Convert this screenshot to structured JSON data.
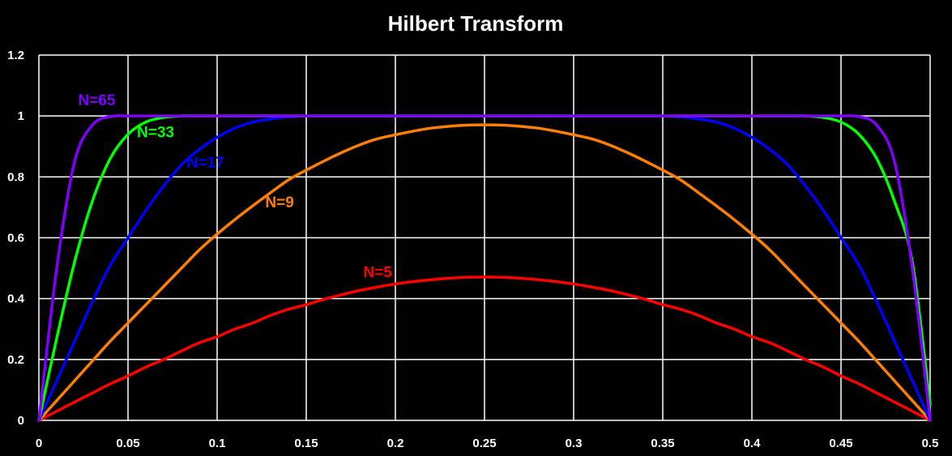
{
  "chart_data": {
    "type": "line",
    "title": "Hilbert Transform",
    "xlabel": "",
    "ylabel": "",
    "xlim": [
      0,
      0.5
    ],
    "ylim": [
      0,
      1.2
    ],
    "xticks": [
      0,
      0.05,
      0.1,
      0.15,
      0.2,
      0.25,
      0.3,
      0.35,
      0.4,
      0.45,
      0.5
    ],
    "xtick_labels": [
      "0",
      "0.05",
      "0.1",
      "0.15",
      "0.2",
      "0.25",
      "0.3",
      "0.35",
      "0.4",
      "0.45",
      "0.5"
    ],
    "yticks": [
      0,
      0.2,
      0.4,
      0.6,
      0.8,
      1,
      1.2
    ],
    "ytick_labels": [
      "0",
      "0.2",
      "0.4",
      "0.6",
      "0.8",
      "1",
      "1.2"
    ],
    "grid": true,
    "legend": "none",
    "background_color": "#000000",
    "x": [
      0,
      0.01,
      0.02,
      0.03,
      0.04,
      0.05,
      0.06,
      0.07,
      0.08,
      0.09,
      0.1,
      0.11,
      0.12,
      0.13,
      0.14,
      0.15,
      0.16,
      0.17,
      0.18,
      0.19,
      0.2,
      0.21,
      0.22,
      0.23,
      0.24,
      0.25,
      0.26,
      0.27,
      0.28,
      0.29,
      0.3,
      0.31,
      0.32,
      0.33,
      0.34,
      0.35,
      0.36,
      0.37,
      0.38,
      0.39,
      0.4,
      0.41,
      0.42,
      0.43,
      0.44,
      0.45,
      0.46,
      0.47,
      0.48,
      0.49,
      0.5
    ],
    "series": [
      {
        "name": "N=5",
        "color": "#ff0000",
        "values": [
          0,
          0.03,
          0.06,
          0.09,
          0.12,
          0.146,
          0.175,
          0.2,
          0.228,
          0.255,
          0.275,
          0.3,
          0.32,
          0.345,
          0.365,
          0.38,
          0.398,
          0.413,
          0.427,
          0.438,
          0.448,
          0.456,
          0.462,
          0.467,
          0.47,
          0.471,
          0.47,
          0.467,
          0.462,
          0.456,
          0.448,
          0.438,
          0.427,
          0.413,
          0.398,
          0.38,
          0.365,
          0.345,
          0.32,
          0.3,
          0.275,
          0.255,
          0.228,
          0.2,
          0.175,
          0.146,
          0.12,
          0.09,
          0.06,
          0.03,
          0
        ],
        "label": {
          "text": "N=5",
          "x": 0.182,
          "y": 0.47
        }
      },
      {
        "name": "N=9",
        "color": "#ff8000",
        "values": [
          0,
          0.065,
          0.13,
          0.195,
          0.26,
          0.32,
          0.38,
          0.44,
          0.5,
          0.56,
          0.612,
          0.66,
          0.705,
          0.748,
          0.79,
          0.822,
          0.852,
          0.88,
          0.905,
          0.925,
          0.938,
          0.95,
          0.96,
          0.966,
          0.97,
          0.971,
          0.97,
          0.966,
          0.96,
          0.95,
          0.938,
          0.925,
          0.905,
          0.88,
          0.852,
          0.822,
          0.79,
          0.748,
          0.705,
          0.66,
          0.612,
          0.56,
          0.5,
          0.44,
          0.38,
          0.32,
          0.26,
          0.195,
          0.13,
          0.065,
          0
        ],
        "label": {
          "text": "N=9",
          "x": 0.127,
          "y": 0.7
        }
      },
      {
        "name": "N=17",
        "color": "#0000ff",
        "values": [
          0,
          0.13,
          0.26,
          0.39,
          0.51,
          0.6,
          0.69,
          0.77,
          0.84,
          0.89,
          0.93,
          0.96,
          0.98,
          0.99,
          0.997,
          1.0,
          1.0,
          1.0,
          1.0,
          1.0,
          1.0,
          1.0,
          1.0,
          1.0,
          1.0,
          1.0,
          1.0,
          1.0,
          1.0,
          1.0,
          1.0,
          1.0,
          1.0,
          1.0,
          1.0,
          1.0,
          0.997,
          0.99,
          0.98,
          0.96,
          0.93,
          0.89,
          0.84,
          0.77,
          0.69,
          0.6,
          0.51,
          0.39,
          0.26,
          0.13,
          0
        ],
        "label": {
          "text": "N=17",
          "x": 0.083,
          "y": 0.83
        }
      },
      {
        "name": "N=33",
        "color": "#00ff00",
        "values": [
          0,
          0.27,
          0.52,
          0.72,
          0.86,
          0.94,
          0.98,
          0.995,
          1.0,
          1.0,
          1.0,
          1.0,
          1.0,
          1.0,
          1.0,
          1.0,
          1.0,
          1.0,
          1.0,
          1.0,
          1.0,
          1.0,
          1.0,
          1.0,
          1.0,
          1.0,
          1.0,
          1.0,
          1.0,
          1.0,
          1.0,
          1.0,
          1.0,
          1.0,
          1.0,
          1.0,
          1.0,
          1.0,
          1.0,
          1.0,
          1.0,
          1.0,
          1.0,
          1.0,
          0.995,
          0.98,
          0.94,
          0.86,
          0.72,
          0.52,
          0.05
        ],
        "label": {
          "text": "N=33",
          "x": 0.055,
          "y": 0.93
        }
      },
      {
        "name": "N=65",
        "color": "#7f00ff",
        "values": [
          0,
          0.5,
          0.85,
          0.97,
          0.998,
          1.0,
          1.0,
          1.0,
          1.0,
          1.0,
          1.0,
          1.0,
          1.0,
          1.0,
          1.0,
          1.0,
          1.0,
          1.0,
          1.0,
          1.0,
          1.0,
          1.0,
          1.0,
          1.0,
          1.0,
          1.0,
          1.0,
          1.0,
          1.0,
          1.0,
          1.0,
          1.0,
          1.0,
          1.0,
          1.0,
          1.0,
          1.0,
          1.0,
          1.0,
          1.0,
          1.0,
          1.0,
          1.0,
          1.0,
          1.0,
          1.0,
          0.998,
          0.97,
          0.85,
          0.5,
          0
        ],
        "label": {
          "text": "N=65",
          "x": 0.022,
          "y": 1.035
        }
      }
    ]
  }
}
